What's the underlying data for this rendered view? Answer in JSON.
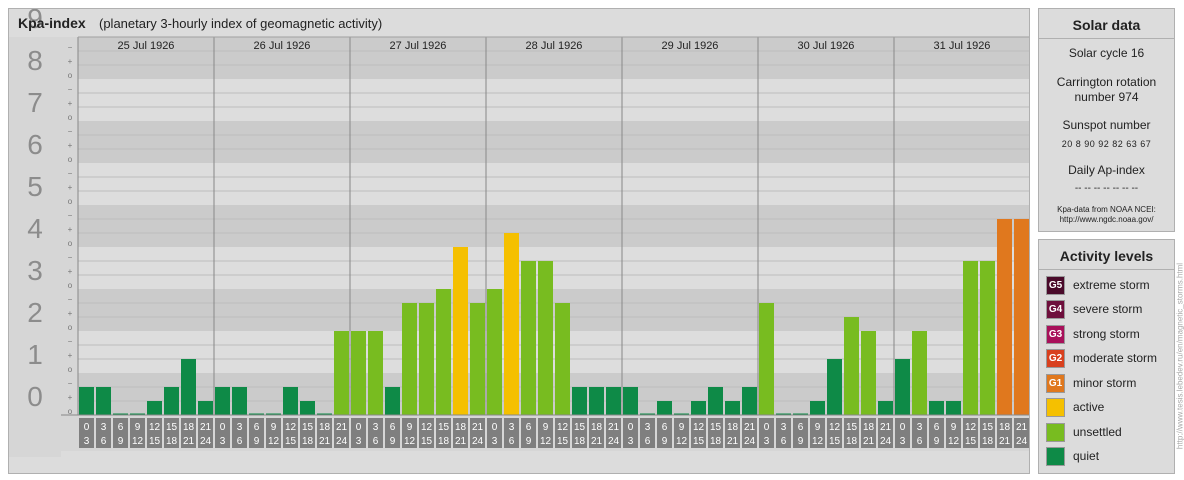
{
  "header": {
    "title": "Kpa-index",
    "subtitle": "(planetary 3-hourly index of geomagnetic activity)"
  },
  "chart_data": {
    "type": "bar",
    "title": "Kpa-index",
    "subtitle": "(planetary 3-hourly index of geomagnetic activity)",
    "ylim": [
      0,
      9
    ],
    "y_ticks": [
      "0",
      "1",
      "2",
      "3",
      "4",
      "5",
      "6",
      "7",
      "8",
      "9"
    ],
    "minor_tick_labels": [
      "o",
      "+",
      "−"
    ],
    "days": [
      "25 Jul 1926",
      "26 Jul 1926",
      "27 Jul 1926",
      "28 Jul 1926",
      "29 Jul 1926",
      "30 Jul 1926",
      "31 Jul 1926"
    ],
    "interval_starts": [
      "0",
      "3",
      "6",
      "9",
      "12",
      "15",
      "18",
      "21"
    ],
    "interval_ends": [
      "3",
      "6",
      "9",
      "12",
      "15",
      "18",
      "21",
      "24"
    ],
    "values": [
      0.667,
      0.667,
      0,
      0,
      0.333,
      0.667,
      1.333,
      0.333,
      0.667,
      0.667,
      0,
      0,
      0.667,
      0.333,
      0,
      2,
      2,
      2,
      0.667,
      2.667,
      2.667,
      3,
      4,
      2.667,
      3,
      4.333,
      3.667,
      3.667,
      2.667,
      0.667,
      0.667,
      0.667,
      0.667,
      0,
      0.333,
      0,
      0.333,
      0.667,
      0.333,
      0.667,
      2.667,
      0,
      0,
      0.333,
      1.333,
      2.333,
      2,
      0.333,
      1.333,
      2,
      0.333,
      0.333,
      3.667,
      3.667,
      4.667,
      4.667
    ],
    "grid": true,
    "legend_position": "right"
  },
  "solar": {
    "title": "Solar data",
    "cycle": "Solar cycle 16",
    "carrington_line1": "Carrington rotation",
    "carrington_line2": "number 974",
    "sunspot_label": "Sunspot number",
    "sunspot_values": "20 8 90 92 82 63 67",
    "dailyap_label": "Daily Ap-index",
    "dailyap_values": "-- -- -- -- -- -- --",
    "credit_line1": "Kpa-data from NOAA NCEI:",
    "credit_line2": "http://www.ngdc.noaa.gov/"
  },
  "activity": {
    "title": "Activity levels",
    "levels": [
      {
        "code": "G5",
        "label": "extreme storm",
        "color": "#4a0a2a"
      },
      {
        "code": "G4",
        "label": "severe storm",
        "color": "#6e0f3c"
      },
      {
        "code": "G3",
        "label": "strong storm",
        "color": "#a8105a"
      },
      {
        "code": "G2",
        "label": "moderate storm",
        "color": "#d9401e"
      },
      {
        "code": "G1",
        "label": "minor storm",
        "color": "#e0781e"
      },
      {
        "code": "",
        "label": "active",
        "color": "#f5c000"
      },
      {
        "code": "",
        "label": "unsettled",
        "color": "#78bc20"
      },
      {
        "code": "",
        "label": "quiet",
        "color": "#0e8a47"
      }
    ]
  },
  "site_credit": "http://www.tesis.lebedev.ru/en/magnetic_storms.html"
}
